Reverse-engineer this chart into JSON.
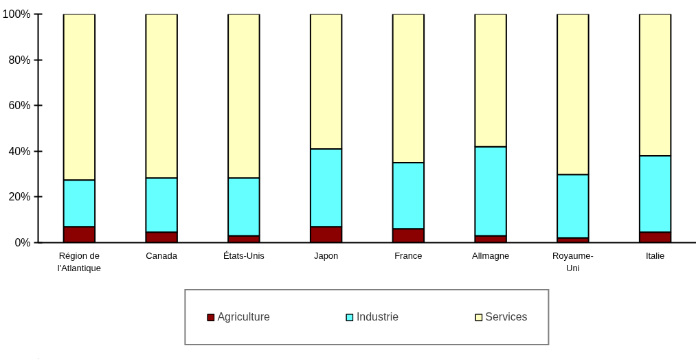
{
  "chart_data": {
    "type": "bar",
    "stacked": true,
    "categories": [
      "Région de l'Atlantique",
      "Canada",
      "États-Unis",
      "Japon",
      "France",
      "Allmagne",
      "Royaume-Uni",
      "Italie"
    ],
    "series": [
      {
        "name": "Agriculture",
        "color": "#8b0000",
        "values": [
          7.0,
          4.6,
          3.0,
          7.0,
          6.1,
          3.0,
          2.1,
          4.6
        ]
      },
      {
        "name": "Industrie",
        "color": "#66ffff",
        "values": [
          20.4,
          23.7,
          25.3,
          34.0,
          28.9,
          39.0,
          27.7,
          33.4
        ]
      },
      {
        "name": "Services",
        "color": "#ffffc0",
        "values": [
          72.6,
          71.7,
          71.7,
          59.0,
          65.0,
          58.0,
          70.2,
          62.0
        ]
      }
    ],
    "ylim": [
      0,
      100
    ],
    "yticks": [
      {
        "value": 0,
        "label": "0%"
      },
      {
        "value": 20,
        "label": "20%"
      },
      {
        "value": 40,
        "label": "40%"
      },
      {
        "value": 60,
        "label": "60%"
      },
      {
        "value": 80,
        "label": "80%"
      },
      {
        "value": 100,
        "label": "100%"
      }
    ],
    "grid": false,
    "legend": "bottom"
  }
}
